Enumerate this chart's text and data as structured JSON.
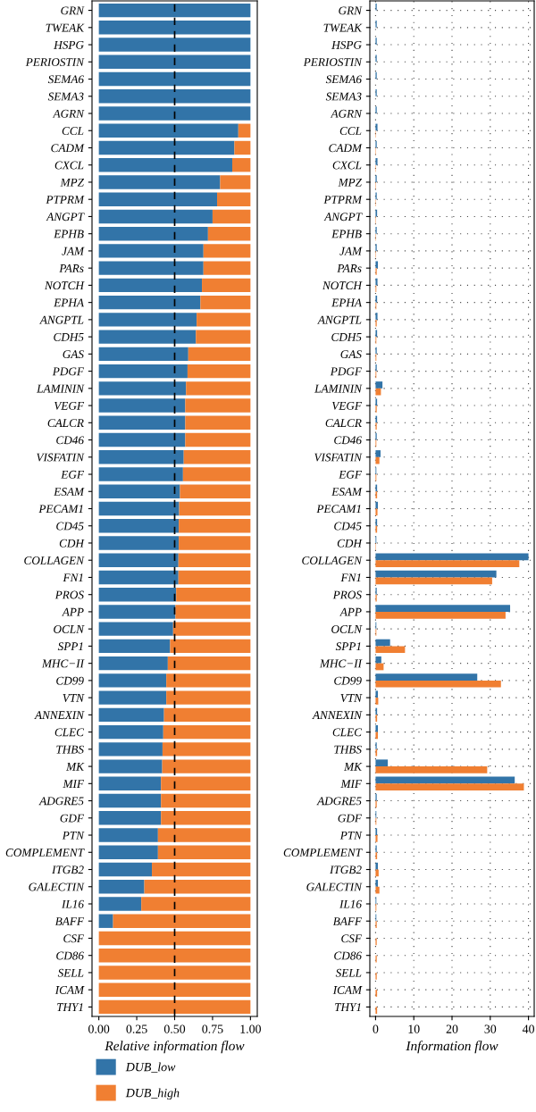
{
  "chart_data": [
    {
      "type": "bar",
      "orientation": "horizontal",
      "stacked": true,
      "xlabel": "Relative information flow",
      "categories": [
        "GRN",
        "TWEAK",
        "HSPG",
        "PERIOSTIN",
        "SEMA6",
        "SEMA3",
        "AGRN",
        "CCL",
        "CADM",
        "CXCL",
        "MPZ",
        "PTPRM",
        "ANGPT",
        "EPHB",
        "JAM",
        "PARs",
        "NOTCH",
        "EPHA",
        "ANGPTL",
        "CDH5",
        "GAS",
        "PDGF",
        "LAMININ",
        "VEGF",
        "CALCR",
        "CD46",
        "VISFATIN",
        "EGF",
        "ESAM",
        "PECAM1",
        "CD45",
        "CDH",
        "COLLAGEN",
        "FN1",
        "PROS",
        "APP",
        "OCLN",
        "SPP1",
        "MHC−II",
        "CD99",
        "VTN",
        "ANNEXIN",
        "CLEC",
        "THBS",
        "MK",
        "MIF",
        "ADGRE5",
        "GDF",
        "PTN",
        "COMPLEMENT",
        "ITGB2",
        "GALECTIN",
        "IL16",
        "BAFF",
        "CSF",
        "CD86",
        "SELL",
        "ICAM",
        "THY1"
      ],
      "series": [
        {
          "name": "DUB_low",
          "color": "#3274a8",
          "values": [
            1,
            1,
            1,
            1,
            1,
            1,
            1,
            0.92,
            0.894,
            0.88,
            0.8,
            0.78,
            0.75,
            0.72,
            0.69,
            0.69,
            0.68,
            0.67,
            0.645,
            0.64,
            0.59,
            0.585,
            0.575,
            0.57,
            0.57,
            0.57,
            0.56,
            0.555,
            0.535,
            0.53,
            0.527,
            0.527,
            0.525,
            0.525,
            0.51,
            0.505,
            0.49,
            0.47,
            0.455,
            0.445,
            0.445,
            0.43,
            0.425,
            0.42,
            0.418,
            0.41,
            0.41,
            0.41,
            0.39,
            0.39,
            0.35,
            0.3,
            0.28,
            0.094,
            0,
            0,
            0,
            0,
            0
          ]
        },
        {
          "name": "DUB_high",
          "color": "#f07f32",
          "values": [
            0,
            0,
            0,
            0,
            0,
            0,
            0,
            0.08,
            0.106,
            0.12,
            0.2,
            0.22,
            0.25,
            0.28,
            0.31,
            0.31,
            0.32,
            0.33,
            0.355,
            0.36,
            0.41,
            0.415,
            0.425,
            0.43,
            0.43,
            0.43,
            0.44,
            0.445,
            0.465,
            0.47,
            0.473,
            0.473,
            0.475,
            0.475,
            0.49,
            0.495,
            0.51,
            0.53,
            0.545,
            0.555,
            0.555,
            0.57,
            0.575,
            0.58,
            0.582,
            0.59,
            0.59,
            0.59,
            0.61,
            0.61,
            0.65,
            0.7,
            0.72,
            0.906,
            1,
            1,
            1,
            1,
            1
          ]
        }
      ],
      "xlim": [
        -0.045,
        1.045
      ],
      "xticks": [
        {
          "value": 0,
          "label": "0.00"
        },
        {
          "value": 0.25,
          "label": "0.25"
        },
        {
          "value": 0.5,
          "label": "0.50"
        },
        {
          "value": 0.75,
          "label": "0.75"
        },
        {
          "value": 1,
          "label": "1.00"
        }
      ],
      "ref_lines": [
        {
          "axis": "x",
          "value": 0.5,
          "color": "#000000",
          "line_style": "dashed"
        }
      ],
      "legend": "bottom",
      "grid": false
    },
    {
      "type": "bar",
      "orientation": "horizontal",
      "xlabel": "Information flow",
      "categories": [
        "GRN",
        "TWEAK",
        "HSPG",
        "PERIOSTIN",
        "SEMA6",
        "SEMA3",
        "AGRN",
        "CCL",
        "CADM",
        "CXCL",
        "MPZ",
        "PTPRM",
        "ANGPT",
        "EPHB",
        "JAM",
        "PARs",
        "NOTCH",
        "EPHA",
        "ANGPTL",
        "CDH5",
        "GAS",
        "PDGF",
        "LAMININ",
        "VEGF",
        "CALCR",
        "CD46",
        "VISFATIN",
        "EGF",
        "ESAM",
        "PECAM1",
        "CD45",
        "CDH",
        "COLLAGEN",
        "FN1",
        "PROS",
        "APP",
        "OCLN",
        "SPP1",
        "MHC−II",
        "CD99",
        "VTN",
        "ANNEXIN",
        "CLEC",
        "THBS",
        "MK",
        "MIF",
        "ADGRE5",
        "GDF",
        "PTN",
        "COMPLEMENT",
        "ITGB2",
        "GALECTIN",
        "IL16",
        "BAFF",
        "CSF",
        "CD86",
        "SELL",
        "ICAM",
        "THY1"
      ],
      "series": [
        {
          "color": "#3274a8",
          "values": [
            0.3,
            0.3,
            0.3,
            0.3,
            0.3,
            0.3,
            0.3,
            0.5,
            0.3,
            0.5,
            0.3,
            0.3,
            0.4,
            0.3,
            0.3,
            0.6,
            0.5,
            0.4,
            0.5,
            0.4,
            0.3,
            0.3,
            1.8,
            0.4,
            0.4,
            0.3,
            1.3,
            0.2,
            0.4,
            0.6,
            0.4,
            0.2,
            40,
            31.6,
            0.3,
            35.2,
            0.2,
            3.8,
            1.5,
            26.6,
            0.6,
            0.4,
            0.6,
            0.3,
            3.2,
            36.4,
            0.3,
            0.2,
            0.4,
            0.3,
            0.6,
            0.6,
            0.2,
            0.2,
            0,
            0,
            0,
            0,
            0
          ]
        },
        {
          "color": "#f07f32",
          "values": [
            0,
            0,
            0,
            0,
            0,
            0,
            0,
            0.1,
            0.1,
            0.1,
            0.1,
            0.1,
            0.1,
            0.1,
            0.1,
            0.3,
            0.2,
            0.2,
            0.3,
            0.2,
            0.2,
            0.2,
            1.4,
            0.3,
            0.3,
            0.2,
            1.0,
            0.2,
            0.4,
            0.5,
            0.4,
            0.1,
            37.6,
            30.5,
            0.3,
            34.0,
            0.2,
            7.7,
            2.1,
            32.8,
            0.7,
            0.4,
            0.6,
            0.4,
            29.2,
            38.8,
            0.3,
            0.2,
            0.5,
            0.4,
            0.8,
            1.0,
            0.2,
            0.3,
            0.3,
            0.3,
            0.3,
            0.4,
            0.4
          ]
        }
      ],
      "xlim": [
        -1.5,
        41.5
      ],
      "xticks": [
        0,
        10,
        20,
        30,
        40
      ],
      "grid": true
    }
  ]
}
